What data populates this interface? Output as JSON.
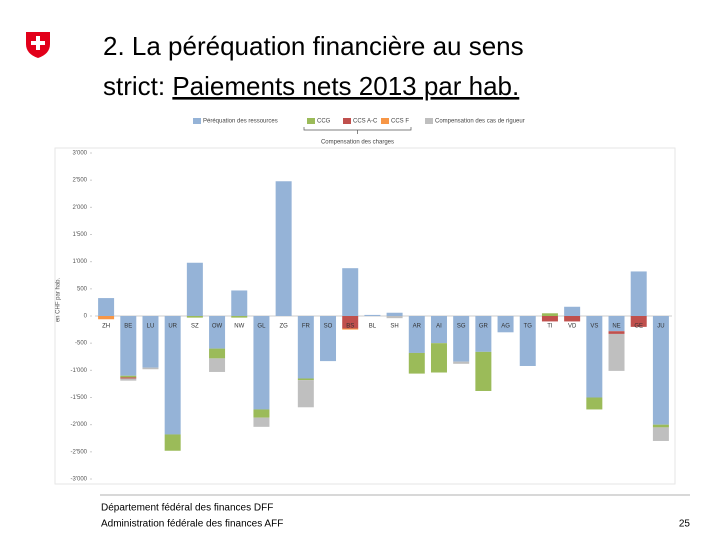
{
  "slide": {
    "title_prefix": "2. La péréquation financière au sens",
    "title_line2": "strict: ",
    "title_underlined": "Paiements nets 2013 par hab.",
    "footer_line1": "Département fédéral des finances DFF",
    "footer_line2": "Administration fédérale des finances AFF",
    "page_number": "25"
  },
  "chart_data": {
    "type": "stacked-bar",
    "ylabel": "en CHF par hab.",
    "bracket_label": "Compensation des charges",
    "categories": [
      "ZH",
      "BE",
      "LU",
      "UR",
      "SZ",
      "OW",
      "NW",
      "GL",
      "ZG",
      "FR",
      "SO",
      "BS",
      "BL",
      "SH",
      "AR",
      "AI",
      "SG",
      "GR",
      "AG",
      "TG",
      "TI",
      "VD",
      "VS",
      "NE",
      "GE",
      "JU"
    ],
    "series": [
      {
        "name": "Péréquation des ressources",
        "color": "#95b3d7",
        "values": [
          330,
          -1100,
          -950,
          -2180,
          980,
          -600,
          470,
          -1720,
          2480,
          -1150,
          -830,
          880,
          20,
          60,
          -680,
          -500,
          -840,
          -660,
          -300,
          -920,
          null,
          170,
          -1500,
          -280,
          820,
          -2000
        ]
      },
      {
        "name": "CCG",
        "color": "#9bbb59",
        "values": [
          null,
          -30,
          null,
          -300,
          -30,
          -180,
          -30,
          -150,
          null,
          -30,
          null,
          null,
          null,
          null,
          -380,
          -540,
          null,
          -720,
          null,
          null,
          50,
          null,
          -220,
          null,
          null,
          -50
        ]
      },
      {
        "name": "CCS A-C",
        "color": "#c0504d",
        "values": [
          null,
          -20,
          null,
          null,
          null,
          null,
          null,
          null,
          null,
          null,
          null,
          -230,
          null,
          null,
          null,
          null,
          null,
          null,
          null,
          null,
          -100,
          -100,
          null,
          -50,
          -200,
          null
        ]
      },
      {
        "name": "CCS F",
        "color": "#f79646",
        "values": [
          -60,
          null,
          null,
          null,
          null,
          null,
          null,
          null,
          null,
          null,
          null,
          -20,
          null,
          null,
          null,
          null,
          null,
          null,
          null,
          null,
          null,
          null,
          null,
          null,
          null,
          null
        ]
      },
      {
        "name": "Compensation des cas de rigueur",
        "color": "#bfbfbf",
        "values": [
          null,
          -40,
          -30,
          null,
          null,
          -250,
          null,
          -170,
          null,
          -500,
          null,
          null,
          null,
          -40,
          null,
          null,
          -40,
          null,
          null,
          null,
          null,
          null,
          null,
          -680,
          null,
          -250
        ]
      }
    ],
    "ylim": [
      -3000,
      3000
    ],
    "yticks": [
      {
        "value": 3000,
        "label": "3'000"
      },
      {
        "value": 2500,
        "label": "2'500"
      },
      {
        "value": 2000,
        "label": "2'000"
      },
      {
        "value": 1500,
        "label": "1'500"
      },
      {
        "value": 1000,
        "label": "1'000"
      },
      500,
      0,
      -500,
      {
        "value": -1000,
        "label": "-1'000"
      },
      {
        "value": -1500,
        "label": "-1'500"
      },
      {
        "value": -2000,
        "label": "-2'000"
      },
      {
        "value": -2500,
        "label": "-2'500"
      },
      {
        "value": -3000,
        "label": "-3'000"
      }
    ],
    "bracket_series": [
      1,
      3
    ]
  }
}
